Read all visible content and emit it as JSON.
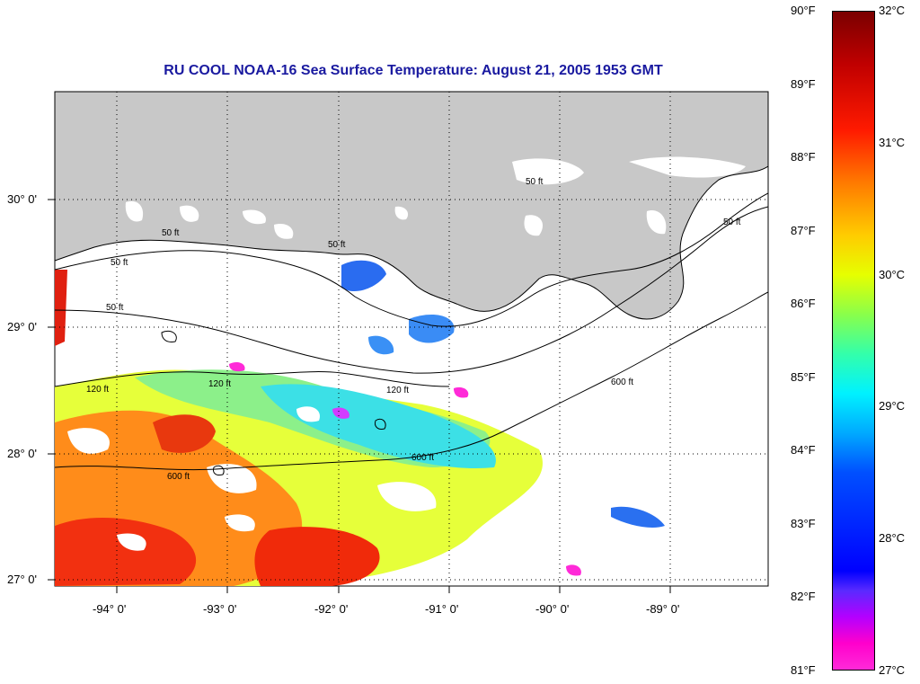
{
  "title": "RU COOL  NOAA-16  Sea Surface Temperature:  August 21, 2005 1953 GMT",
  "latitude_labels": [
    "30° 0'",
    "29° 0'",
    "28° 0'",
    "27° 0'"
  ],
  "longitude_labels": [
    "-94° 0'",
    "-93° 0'",
    "-92° 0'",
    "-91° 0'",
    "-90° 0'",
    "-89° 0'"
  ],
  "contour_labels": [
    "50 ft",
    "50 ft",
    "50 ft",
    "50 ft",
    "50 ft",
    "50 ft",
    "120 ft",
    "120 ft",
    "120 ft",
    "600 ft",
    "600 ft",
    "600 ft"
  ],
  "colorbar": {
    "fahrenheit": [
      "90°F",
      "89°F",
      "88°F",
      "87°F",
      "86°F",
      "85°F",
      "84°F",
      "83°F",
      "82°F",
      "81°F"
    ],
    "celsius": [
      "32°C",
      "31°C",
      "30°C",
      "29°C",
      "28°C",
      "27°C"
    ]
  },
  "colors": {
    "land": "#c8c8c8",
    "cloud_mask": "#ffffff",
    "title": "#1a1aa0",
    "warm": "#ff2a00",
    "mid": "#e6ff1a",
    "cool": "#00ccff",
    "cold": "#ff2ad8"
  }
}
